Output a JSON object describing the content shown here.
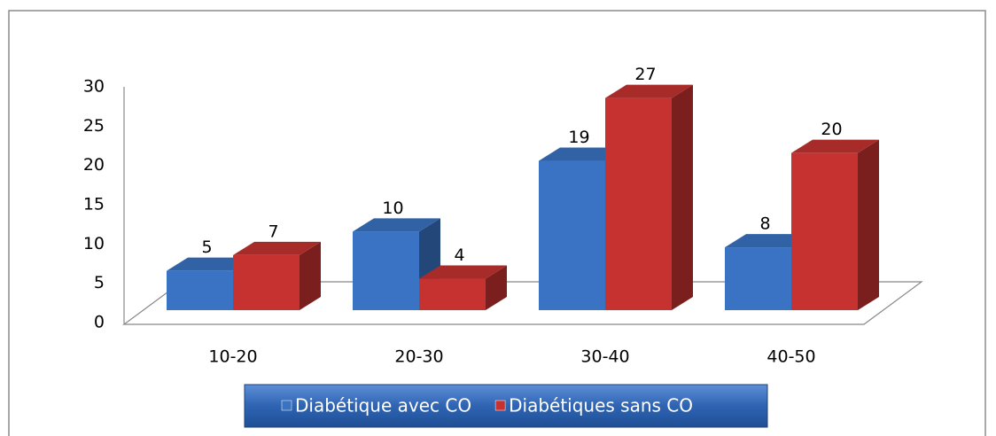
{
  "chart_data": {
    "type": "bar3d",
    "categories": [
      "10-20",
      "20-30",
      "30-40",
      "40-50"
    ],
    "series": [
      {
        "name": "Diabétique avec CO",
        "color": "#3a73c3",
        "values": [
          5,
          10,
          19,
          8
        ]
      },
      {
        "name": "Diabétiques sans CO",
        "color": "#c53230",
        "values": [
          7,
          4,
          27,
          20
        ]
      }
    ],
    "ylim": [
      0,
      30
    ],
    "yticks": [
      0,
      5,
      10,
      15,
      20,
      25,
      30
    ],
    "legend": "bottom"
  }
}
